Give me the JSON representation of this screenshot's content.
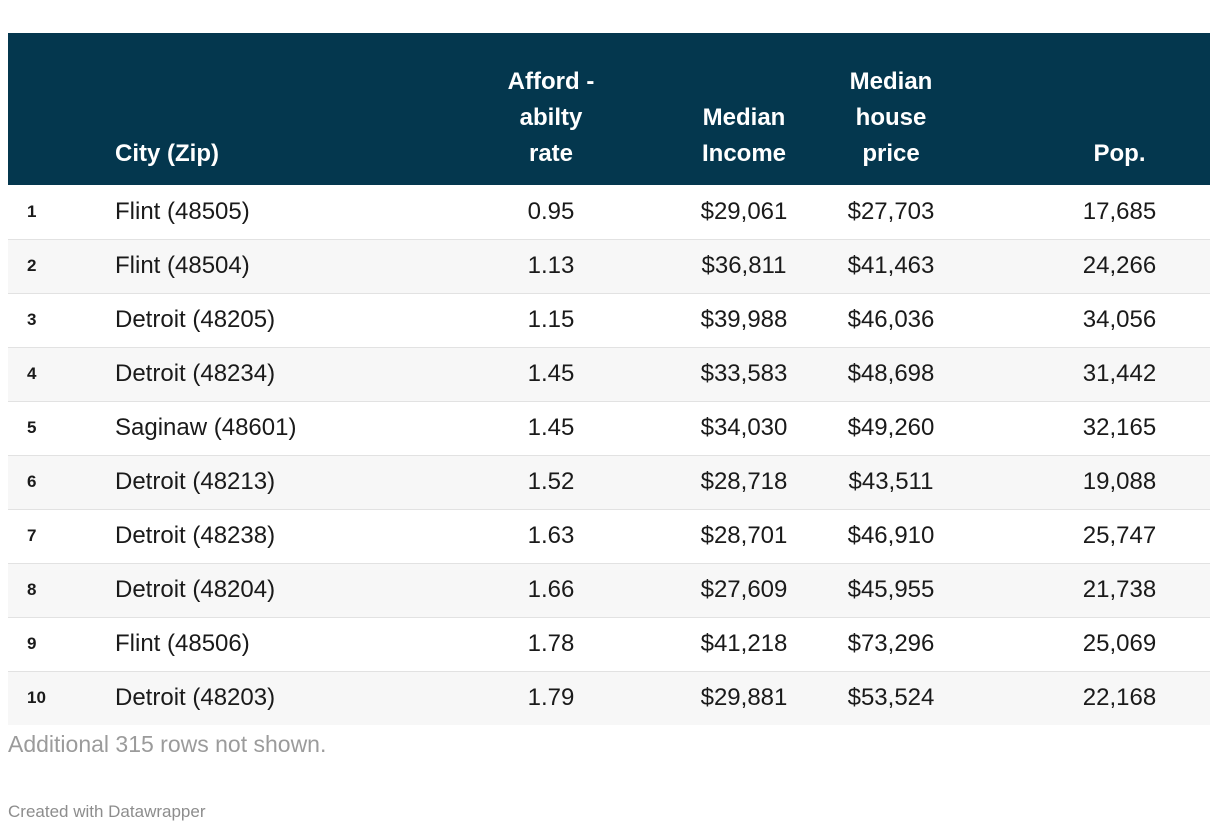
{
  "chart_data": {
    "type": "table",
    "columns": [
      {
        "id": "rank",
        "label": ""
      },
      {
        "id": "city_zip",
        "label": "City (Zip)"
      },
      {
        "id": "affordability_rate",
        "label": "Afford -\nabilty\nrate"
      },
      {
        "id": "median_income",
        "label": "Median\nIncome"
      },
      {
        "id": "median_house_price",
        "label": "Median\nhouse\nprice"
      },
      {
        "id": "population",
        "label": "Pop."
      }
    ],
    "rows": [
      [
        "1",
        "Flint (48505)",
        "0.95",
        "$29,061",
        "$27,703",
        "17,685"
      ],
      [
        "2",
        "Flint (48504)",
        "1.13",
        "$36,811",
        "$41,463",
        "24,266"
      ],
      [
        "3",
        "Detroit (48205)",
        "1.15",
        "$39,988",
        "$46,036",
        "34,056"
      ],
      [
        "4",
        "Detroit (48234)",
        "1.45",
        "$33,583",
        "$48,698",
        "31,442"
      ],
      [
        "5",
        "Saginaw (48601)",
        "1.45",
        "$34,030",
        "$49,260",
        "32,165"
      ],
      [
        "6",
        "Detroit (48213)",
        "1.52",
        "$28,718",
        "$43,511",
        "19,088"
      ],
      [
        "7",
        "Detroit (48238)",
        "1.63",
        "$28,701",
        "$46,910",
        "25,747"
      ],
      [
        "8",
        "Detroit (48204)",
        "1.66",
        "$27,609",
        "$45,955",
        "21,738"
      ],
      [
        "9",
        "Flint (48506)",
        "1.78",
        "$41,218",
        "$73,296",
        "25,069"
      ],
      [
        "10",
        "Detroit (48203)",
        "1.79",
        "$29,881",
        "$53,524",
        "22,168"
      ]
    ]
  },
  "footer": {
    "note": "Additional 315 rows not shown.",
    "credit": "Created with Datawrapper"
  },
  "colors": {
    "header_bg": "#04374e",
    "header_text": "#ffffff",
    "row_stripe": "#f7f7f7",
    "row_divider": "#e2e2e2",
    "body_text": "#1a1a1a",
    "note_text": "#9b9b9b",
    "credit_text": "#8d8d8d",
    "background": "#ffffff"
  }
}
